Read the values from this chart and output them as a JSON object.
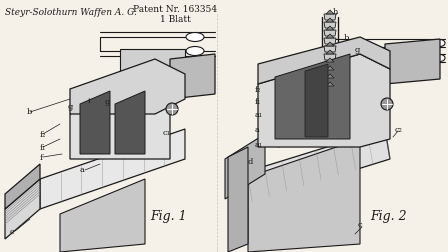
{
  "background_color": "#f5f0e8",
  "title_left": "Steyr-Solothurn Waffen A. G.",
  "title_center": "Patent Nr. 163354\n1 Blatt",
  "fig1_label": "Fig. 1",
  "fig2_label": "Fig. 2",
  "fig_width": 4.48,
  "fig_height": 2.53,
  "dpi": 100,
  "line_color": "#1a1a1a",
  "light_gray": "#aaaaaa",
  "dark_gray": "#444444",
  "mid_gray": "#888888",
  "header_fontsize": 6.5,
  "label_fontsize": 6,
  "figlabel_fontsize": 9
}
